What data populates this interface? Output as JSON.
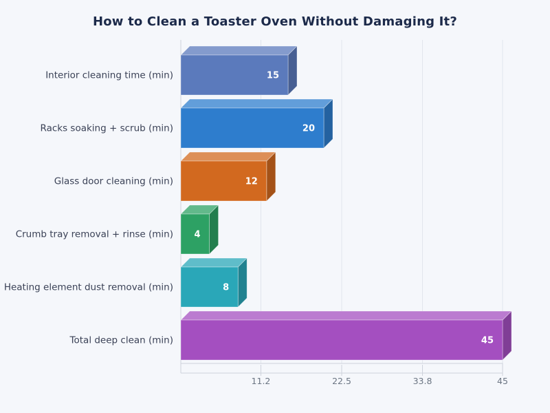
{
  "chart_data": {
    "type": "bar",
    "orientation": "horizontal",
    "style_3d": true,
    "title": "How to Clean a Toaster Oven Without Damaging It?",
    "categories": [
      "Interior cleaning time (min)",
      "Racks soaking + scrub (min)",
      "Glass door cleaning (min)",
      "Crumb tray removal + rinse (min)",
      "Heating element dust removal (min)",
      "Total deep clean (min)"
    ],
    "values": [
      15,
      20,
      12,
      4,
      8,
      45
    ],
    "bar_colors": [
      "#5b7abc",
      "#2e7dcd",
      "#d2691f",
      "#2da164",
      "#2aa7b8",
      "#a44fc0"
    ],
    "xticks": [
      11.2,
      22.5,
      33.8,
      45
    ],
    "xlim": [
      0,
      45
    ],
    "xlabel": "",
    "ylabel": "",
    "grid": true,
    "legend_position": "none",
    "value_labels": "inside-end"
  },
  "colors": {
    "background": "#f5f7fb",
    "title": "#1c2a4a",
    "category_label": "#3a4156",
    "tick_label": "#6b7583",
    "value_label": "#ffffff",
    "gridline": "#e1e5ec",
    "frame": "#cdd2db"
  }
}
